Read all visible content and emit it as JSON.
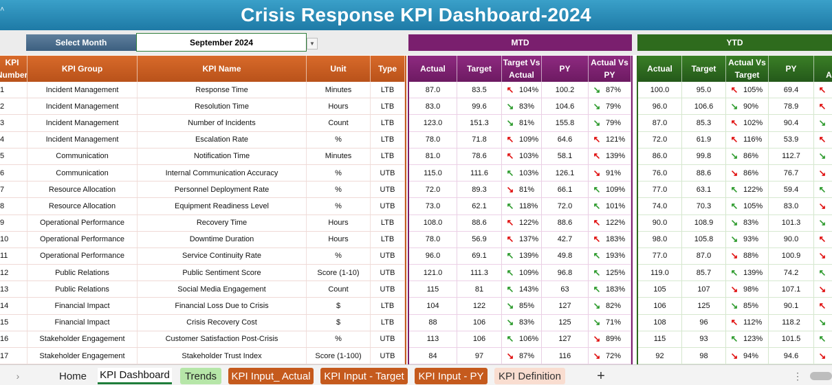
{
  "title": "Crisis Response KPI Dashboard-2024",
  "select_month_label": "Select Month",
  "selected_month": "September 2024",
  "mtd_label": "MTD",
  "ytd_label": "YTD",
  "kpi_headers": {
    "number": "KPI Number",
    "group": "KPI Group",
    "name": "KPI Name",
    "unit": "Unit",
    "type": "Type"
  },
  "mtd_headers": [
    "Actual",
    "Target",
    "Target Vs Actual",
    "PY",
    "Actual Vs PY"
  ],
  "ytd_headers": [
    "Actual",
    "Target",
    "Actual Vs Target",
    "PY",
    "PY Actual"
  ],
  "colors": {
    "title_bar": "#1e7aa6",
    "kpi": "#c55a1d",
    "mtd": "#7a1f6e",
    "ytd": "#2e6b1d",
    "arrow_up": "#2e9b2e",
    "arrow_down": "#e01010"
  },
  "rows": [
    {
      "n": "1",
      "group": "Incident Management",
      "name": "Response Time",
      "unit": "Minutes",
      "type": "LTB",
      "mtd": {
        "actual": "87.0",
        "target": "83.5",
        "tva": "104%",
        "tva_dir": "up-red",
        "py": "100.2",
        "avp": "87%",
        "avp_dir": "down-green"
      },
      "ytd": {
        "actual": "100.0",
        "target": "95.0",
        "avt": "105%",
        "avt_dir": "up-red",
        "py": "69.4",
        "py_dir": "up-red"
      }
    },
    {
      "n": "2",
      "group": "Incident Management",
      "name": "Resolution Time",
      "unit": "Hours",
      "type": "LTB",
      "mtd": {
        "actual": "83.0",
        "target": "99.6",
        "tva": "83%",
        "tva_dir": "down-green",
        "py": "104.6",
        "avp": "79%",
        "avp_dir": "down-green"
      },
      "ytd": {
        "actual": "96.0",
        "target": "106.6",
        "avt": "90%",
        "avt_dir": "down-green",
        "py": "78.9",
        "py_dir": "up-red"
      }
    },
    {
      "n": "3",
      "group": "Incident Management",
      "name": "Number of Incidents",
      "unit": "Count",
      "type": "LTB",
      "mtd": {
        "actual": "123.0",
        "target": "151.3",
        "tva": "81%",
        "tva_dir": "down-green",
        "py": "155.8",
        "avp": "79%",
        "avp_dir": "down-green"
      },
      "ytd": {
        "actual": "87.0",
        "target": "85.3",
        "avt": "102%",
        "avt_dir": "up-red",
        "py": "90.4",
        "py_dir": "down-green"
      }
    },
    {
      "n": "4",
      "group": "Incident Management",
      "name": "Escalation Rate",
      "unit": "%",
      "type": "LTB",
      "mtd": {
        "actual": "78.0",
        "target": "71.8",
        "tva": "109%",
        "tva_dir": "up-red",
        "py": "64.6",
        "avp": "121%",
        "avp_dir": "up-red"
      },
      "ytd": {
        "actual": "72.0",
        "target": "61.9",
        "avt": "116%",
        "avt_dir": "up-red",
        "py": "53.9",
        "py_dir": "up-red"
      }
    },
    {
      "n": "5",
      "group": "Communication",
      "name": "Notification Time",
      "unit": "Minutes",
      "type": "LTB",
      "mtd": {
        "actual": "81.0",
        "target": "78.6",
        "tva": "103%",
        "tva_dir": "up-red",
        "py": "58.1",
        "avp": "139%",
        "avp_dir": "up-red"
      },
      "ytd": {
        "actual": "86.0",
        "target": "99.8",
        "avt": "86%",
        "avt_dir": "down-green",
        "py": "112.7",
        "py_dir": "down-green"
      }
    },
    {
      "n": "6",
      "group": "Communication",
      "name": "Internal Communication Accuracy",
      "unit": "%",
      "type": "UTB",
      "mtd": {
        "actual": "115.0",
        "target": "111.6",
        "tva": "103%",
        "tva_dir": "up-green",
        "py": "126.1",
        "avp": "91%",
        "avp_dir": "down-red"
      },
      "ytd": {
        "actual": "76.0",
        "target": "88.6",
        "avt": "86%",
        "avt_dir": "down-red",
        "py": "76.7",
        "py_dir": "down-red"
      }
    },
    {
      "n": "7",
      "group": "Resource Allocation",
      "name": "Personnel Deployment Rate",
      "unit": "%",
      "type": "UTB",
      "mtd": {
        "actual": "72.0",
        "target": "89.3",
        "tva": "81%",
        "tva_dir": "down-red",
        "py": "66.1",
        "avp": "109%",
        "avp_dir": "up-green"
      },
      "ytd": {
        "actual": "77.0",
        "target": "63.1",
        "avt": "122%",
        "avt_dir": "up-green",
        "py": "59.4",
        "py_dir": "up-green"
      }
    },
    {
      "n": "8",
      "group": "Resource Allocation",
      "name": "Equipment Readiness Level",
      "unit": "%",
      "type": "UTB",
      "mtd": {
        "actual": "73.0",
        "target": "62.1",
        "tva": "118%",
        "tva_dir": "up-green",
        "py": "72.0",
        "avp": "101%",
        "avp_dir": "up-green"
      },
      "ytd": {
        "actual": "74.0",
        "target": "70.3",
        "avt": "105%",
        "avt_dir": "up-green",
        "py": "83.0",
        "py_dir": "down-red"
      }
    },
    {
      "n": "9",
      "group": "Operational Performance",
      "name": "Recovery Time",
      "unit": "Hours",
      "type": "LTB",
      "mtd": {
        "actual": "108.0",
        "target": "88.6",
        "tva": "122%",
        "tva_dir": "up-red",
        "py": "88.6",
        "avp": "122%",
        "avp_dir": "up-red"
      },
      "ytd": {
        "actual": "90.0",
        "target": "108.9",
        "avt": "83%",
        "avt_dir": "down-green",
        "py": "101.3",
        "py_dir": "down-green"
      }
    },
    {
      "n": "10",
      "group": "Operational Performance",
      "name": "Downtime Duration",
      "unit": "Hours",
      "type": "LTB",
      "mtd": {
        "actual": "78.0",
        "target": "56.9",
        "tva": "137%",
        "tva_dir": "up-red",
        "py": "42.7",
        "avp": "183%",
        "avp_dir": "up-red"
      },
      "ytd": {
        "actual": "98.0",
        "target": "105.8",
        "avt": "93%",
        "avt_dir": "down-green",
        "py": "90.0",
        "py_dir": "up-red"
      }
    },
    {
      "n": "11",
      "group": "Operational Performance",
      "name": "Service Continuity Rate",
      "unit": "%",
      "type": "UTB",
      "mtd": {
        "actual": "96.0",
        "target": "69.1",
        "tva": "139%",
        "tva_dir": "up-green",
        "py": "49.8",
        "avp": "193%",
        "avp_dir": "up-green"
      },
      "ytd": {
        "actual": "77.0",
        "target": "87.0",
        "avt": "88%",
        "avt_dir": "down-red",
        "py": "100.9",
        "py_dir": "down-red"
      }
    },
    {
      "n": "12",
      "group": "Public Relations",
      "name": "Public Sentiment Score",
      "unit": "Score (1-10)",
      "type": "UTB",
      "mtd": {
        "actual": "121.0",
        "target": "111.3",
        "tva": "109%",
        "tva_dir": "up-green",
        "py": "96.8",
        "avp": "125%",
        "avp_dir": "up-green"
      },
      "ytd": {
        "actual": "119.0",
        "target": "85.7",
        "avt": "139%",
        "avt_dir": "up-green",
        "py": "74.2",
        "py_dir": "up-green"
      }
    },
    {
      "n": "13",
      "group": "Public Relations",
      "name": "Social Media Engagement",
      "unit": "Count",
      "type": "UTB",
      "mtd": {
        "actual": "115",
        "target": "81",
        "tva": "143%",
        "tva_dir": "up-green",
        "py": "63",
        "avp": "183%",
        "avp_dir": "up-green"
      },
      "ytd": {
        "actual": "105",
        "target": "107",
        "avt": "98%",
        "avt_dir": "down-red",
        "py": "107.1",
        "py_dir": "down-red"
      }
    },
    {
      "n": "14",
      "group": "Financial Impact",
      "name": "Financial Loss Due to Crisis",
      "unit": "$",
      "type": "LTB",
      "mtd": {
        "actual": "104",
        "target": "122",
        "tva": "85%",
        "tva_dir": "down-green",
        "py": "127",
        "avp": "82%",
        "avp_dir": "down-green"
      },
      "ytd": {
        "actual": "106",
        "target": "125",
        "avt": "85%",
        "avt_dir": "down-green",
        "py": "90.1",
        "py_dir": "up-red"
      }
    },
    {
      "n": "15",
      "group": "Financial Impact",
      "name": "Crisis Recovery Cost",
      "unit": "$",
      "type": "LTB",
      "mtd": {
        "actual": "88",
        "target": "106",
        "tva": "83%",
        "tva_dir": "down-green",
        "py": "125",
        "avp": "71%",
        "avp_dir": "down-green"
      },
      "ytd": {
        "actual": "108",
        "target": "96",
        "avt": "112%",
        "avt_dir": "up-red",
        "py": "118.2",
        "py_dir": "down-green"
      }
    },
    {
      "n": "16",
      "group": "Stakeholder Engagement",
      "name": "Customer Satisfaction Post-Crisis",
      "unit": "%",
      "type": "UTB",
      "mtd": {
        "actual": "113",
        "target": "106",
        "tva": "106%",
        "tva_dir": "up-green",
        "py": "127",
        "avp": "89%",
        "avp_dir": "down-red"
      },
      "ytd": {
        "actual": "115",
        "target": "93",
        "avt": "123%",
        "avt_dir": "up-green",
        "py": "101.5",
        "py_dir": "up-green"
      }
    },
    {
      "n": "17",
      "group": "Stakeholder Engagement",
      "name": "Stakeholder Trust Index",
      "unit": "Score (1-100)",
      "type": "UTB",
      "mtd": {
        "actual": "84",
        "target": "97",
        "tva": "87%",
        "tva_dir": "down-red",
        "py": "116",
        "avp": "72%",
        "avp_dir": "down-red"
      },
      "ytd": {
        "actual": "92",
        "target": "98",
        "avt": "94%",
        "avt_dir": "down-red",
        "py": "94.6",
        "py_dir": "down-red"
      }
    }
  ],
  "tabs": [
    "Home",
    "KPI Dashboard",
    "Trends",
    "KPI Input_ Actual",
    "KPI Input - Target",
    "KPI Input - PY",
    "KPI Definition"
  ],
  "tab_plus": "+"
}
